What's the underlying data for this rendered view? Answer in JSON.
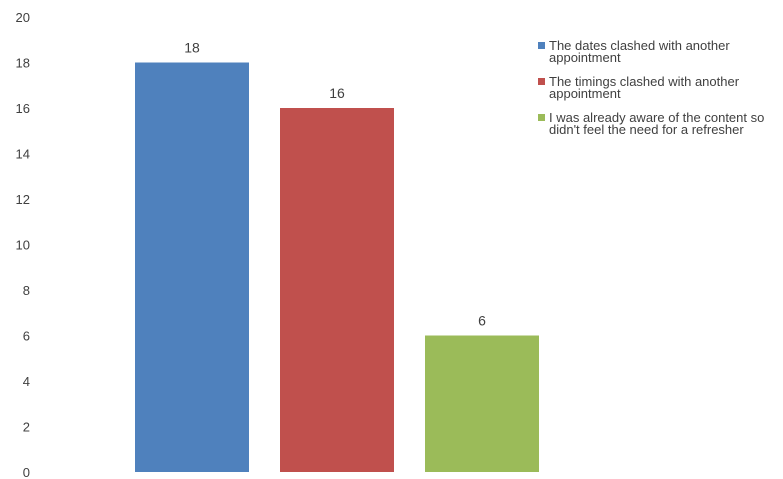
{
  "chart_data": {
    "type": "bar",
    "categories": [
      "The dates clashed with another appointment",
      "The timings clashed with another appointment",
      "I was already aware of the content so didn't feel the need for a refresher"
    ],
    "values": [
      18,
      16,
      6
    ],
    "colors": [
      "#4f81bd",
      "#c0504d",
      "#9bbb59"
    ],
    "ylim": [
      0,
      20
    ],
    "yticks": [
      "0",
      "2",
      "4",
      "6",
      "8",
      "10",
      "12",
      "14",
      "16",
      "18",
      "20"
    ],
    "ytick_values": [
      0,
      2,
      4,
      6,
      8,
      10,
      12,
      14,
      16,
      18,
      20
    ],
    "data_labels": [
      "18",
      "16",
      "6"
    ],
    "grid": false,
    "legend_position": "right",
    "title": "",
    "xlabel": "",
    "ylabel": ""
  },
  "legend": {
    "items": [
      {
        "label": "The dates clashed with another appointment",
        "color": "#4f81bd"
      },
      {
        "label": "The timings clashed with another appointment",
        "color": "#c0504d"
      },
      {
        "label": "I was already aware of the content so didn't feel the need for a refresher",
        "color": "#9bbb59"
      }
    ]
  }
}
